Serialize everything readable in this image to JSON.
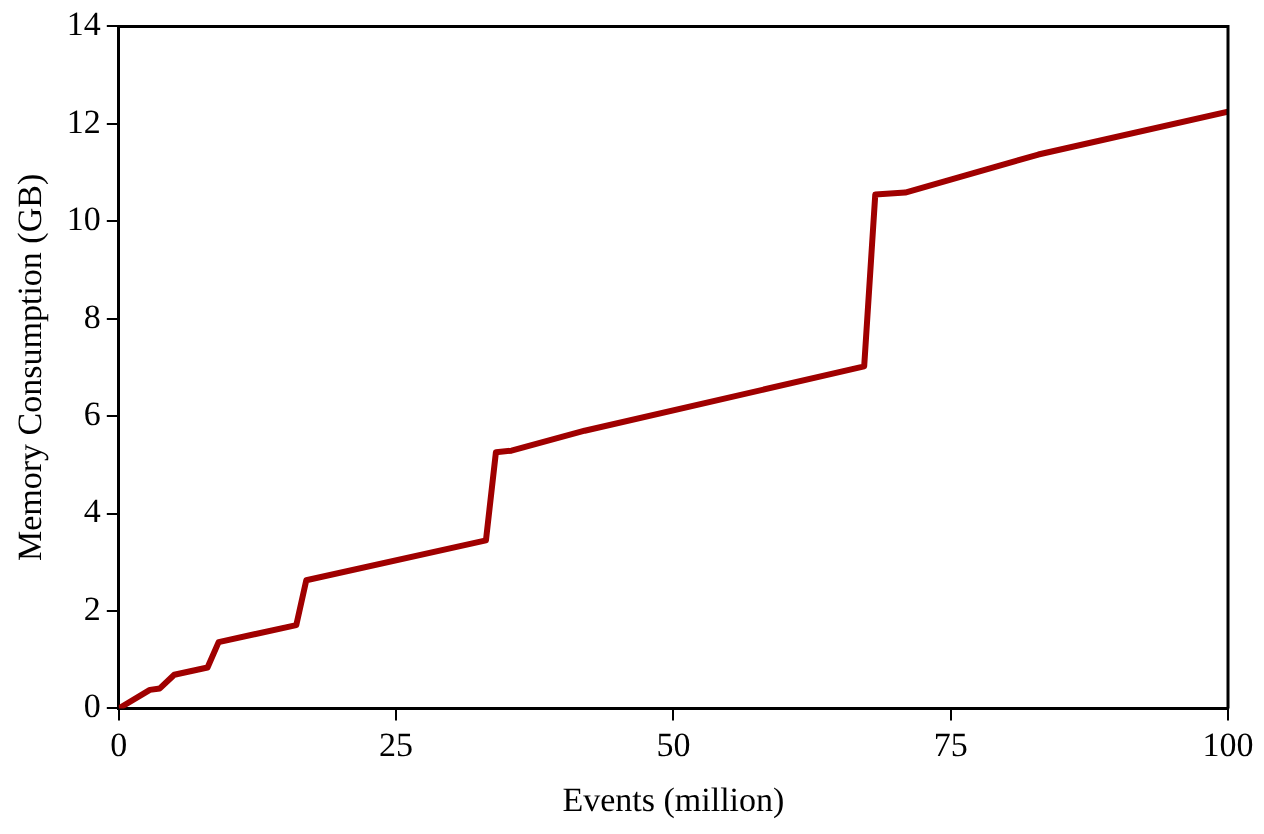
{
  "chart_data": {
    "type": "line",
    "xlabel": "Events (million)",
    "ylabel": "Memory Consumption (GB)",
    "x": [
      0,
      2.8,
      3.7,
      5,
      8,
      9,
      16,
      16.9,
      33.1,
      34,
      35.4,
      42,
      67.2,
      68.2,
      70.9,
      82.9,
      100
    ],
    "series": [
      {
        "color": "#a00000",
        "values": [
          0,
          0.38,
          0.41,
          0.69,
          0.84,
          1.36,
          1.71,
          2.63,
          3.45,
          5.26,
          5.29,
          5.7,
          7.02,
          10.55,
          10.59,
          11.37,
          12.25
        ]
      }
    ],
    "xlim": [
      0,
      100
    ],
    "xticks": [
      0,
      25,
      50,
      75,
      100
    ],
    "ylim": [
      0,
      14
    ],
    "yticks": [
      0,
      2,
      4,
      6,
      8,
      10,
      12,
      14
    ],
    "grid": false,
    "legend": false,
    "marker": "none",
    "line_style": "solid"
  }
}
